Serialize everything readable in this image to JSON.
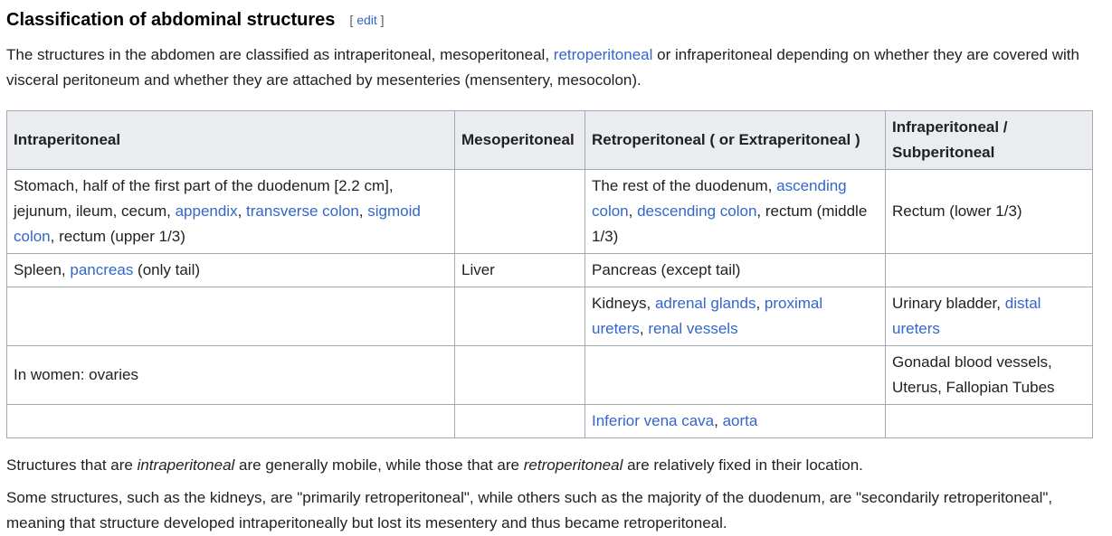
{
  "section": {
    "title": "Classification of abdominal structures",
    "edit_open": "[ ",
    "edit_label": "edit",
    "edit_close": " ]"
  },
  "intro": {
    "t1": "The structures in the abdomen are classified as intraperitoneal, mesoperitoneal, ",
    "l1": "retroperitoneal",
    "t2": " or infraperitoneal depending on whether they are covered with visceral peritoneum and whether they are attached by mesenteries (mensentery, mesocolon)."
  },
  "table": {
    "headers": [
      "Intraperitoneal",
      "Mesoperitoneal",
      "Retroperitoneal ( or Extraperitoneal )",
      "Infraperitoneal / Subperitoneal"
    ],
    "r1": {
      "c1_t1": "Stomach, half of the first part of the duodenum [2.2 cm], jejunum, ileum, cecum, ",
      "c1_l1": "appendix",
      "c1_t2": ", ",
      "c1_l2": "transverse colon",
      "c1_t3": ", ",
      "c1_l3": "sigmoid colon",
      "c1_t4": ", rectum (upper 1/3)",
      "c3_t1": "The rest of the duodenum, ",
      "c3_l1": "ascending colon",
      "c3_t2": ", ",
      "c3_l2": "descending colon",
      "c3_t3": ", rectum (middle 1/3)",
      "c4": "Rectum (lower 1/3)"
    },
    "r2": {
      "c1_t1": "Spleen, ",
      "c1_l1": "pancreas",
      "c1_t2": " (only tail)",
      "c2": "Liver",
      "c3": "Pancreas (except tail)"
    },
    "r3": {
      "c3_t1": "Kidneys, ",
      "c3_l1": "adrenal glands",
      "c3_t2": ", ",
      "c3_l2": "proximal ureters",
      "c3_t3": ", ",
      "c3_l3": "renal vessels",
      "c4_t1": "Urinary bladder, ",
      "c4_l1": "distal ureters"
    },
    "r4": {
      "c1": "In women: ovaries",
      "c4": "Gonadal blood vessels, Uterus, Fallopian Tubes"
    },
    "r5": {
      "c3_l1": "Inferior vena cava",
      "c3_t1": ", ",
      "c3_l2": "aorta"
    }
  },
  "para2": {
    "t1": "Structures that are ",
    "e1": "intraperitoneal",
    "t2": " are generally mobile, while those that are ",
    "e2": "retroperitoneal",
    "t3": " are relatively fixed in their location."
  },
  "para3": {
    "text": "Some structures, such as the kidneys, are \"primarily retroperitoneal\", while others such as the majority of the duodenum, are \"secondarily retroperitoneal\", meaning that structure developed intraperitoneally but lost its mesentery and thus became retroperitoneal."
  }
}
